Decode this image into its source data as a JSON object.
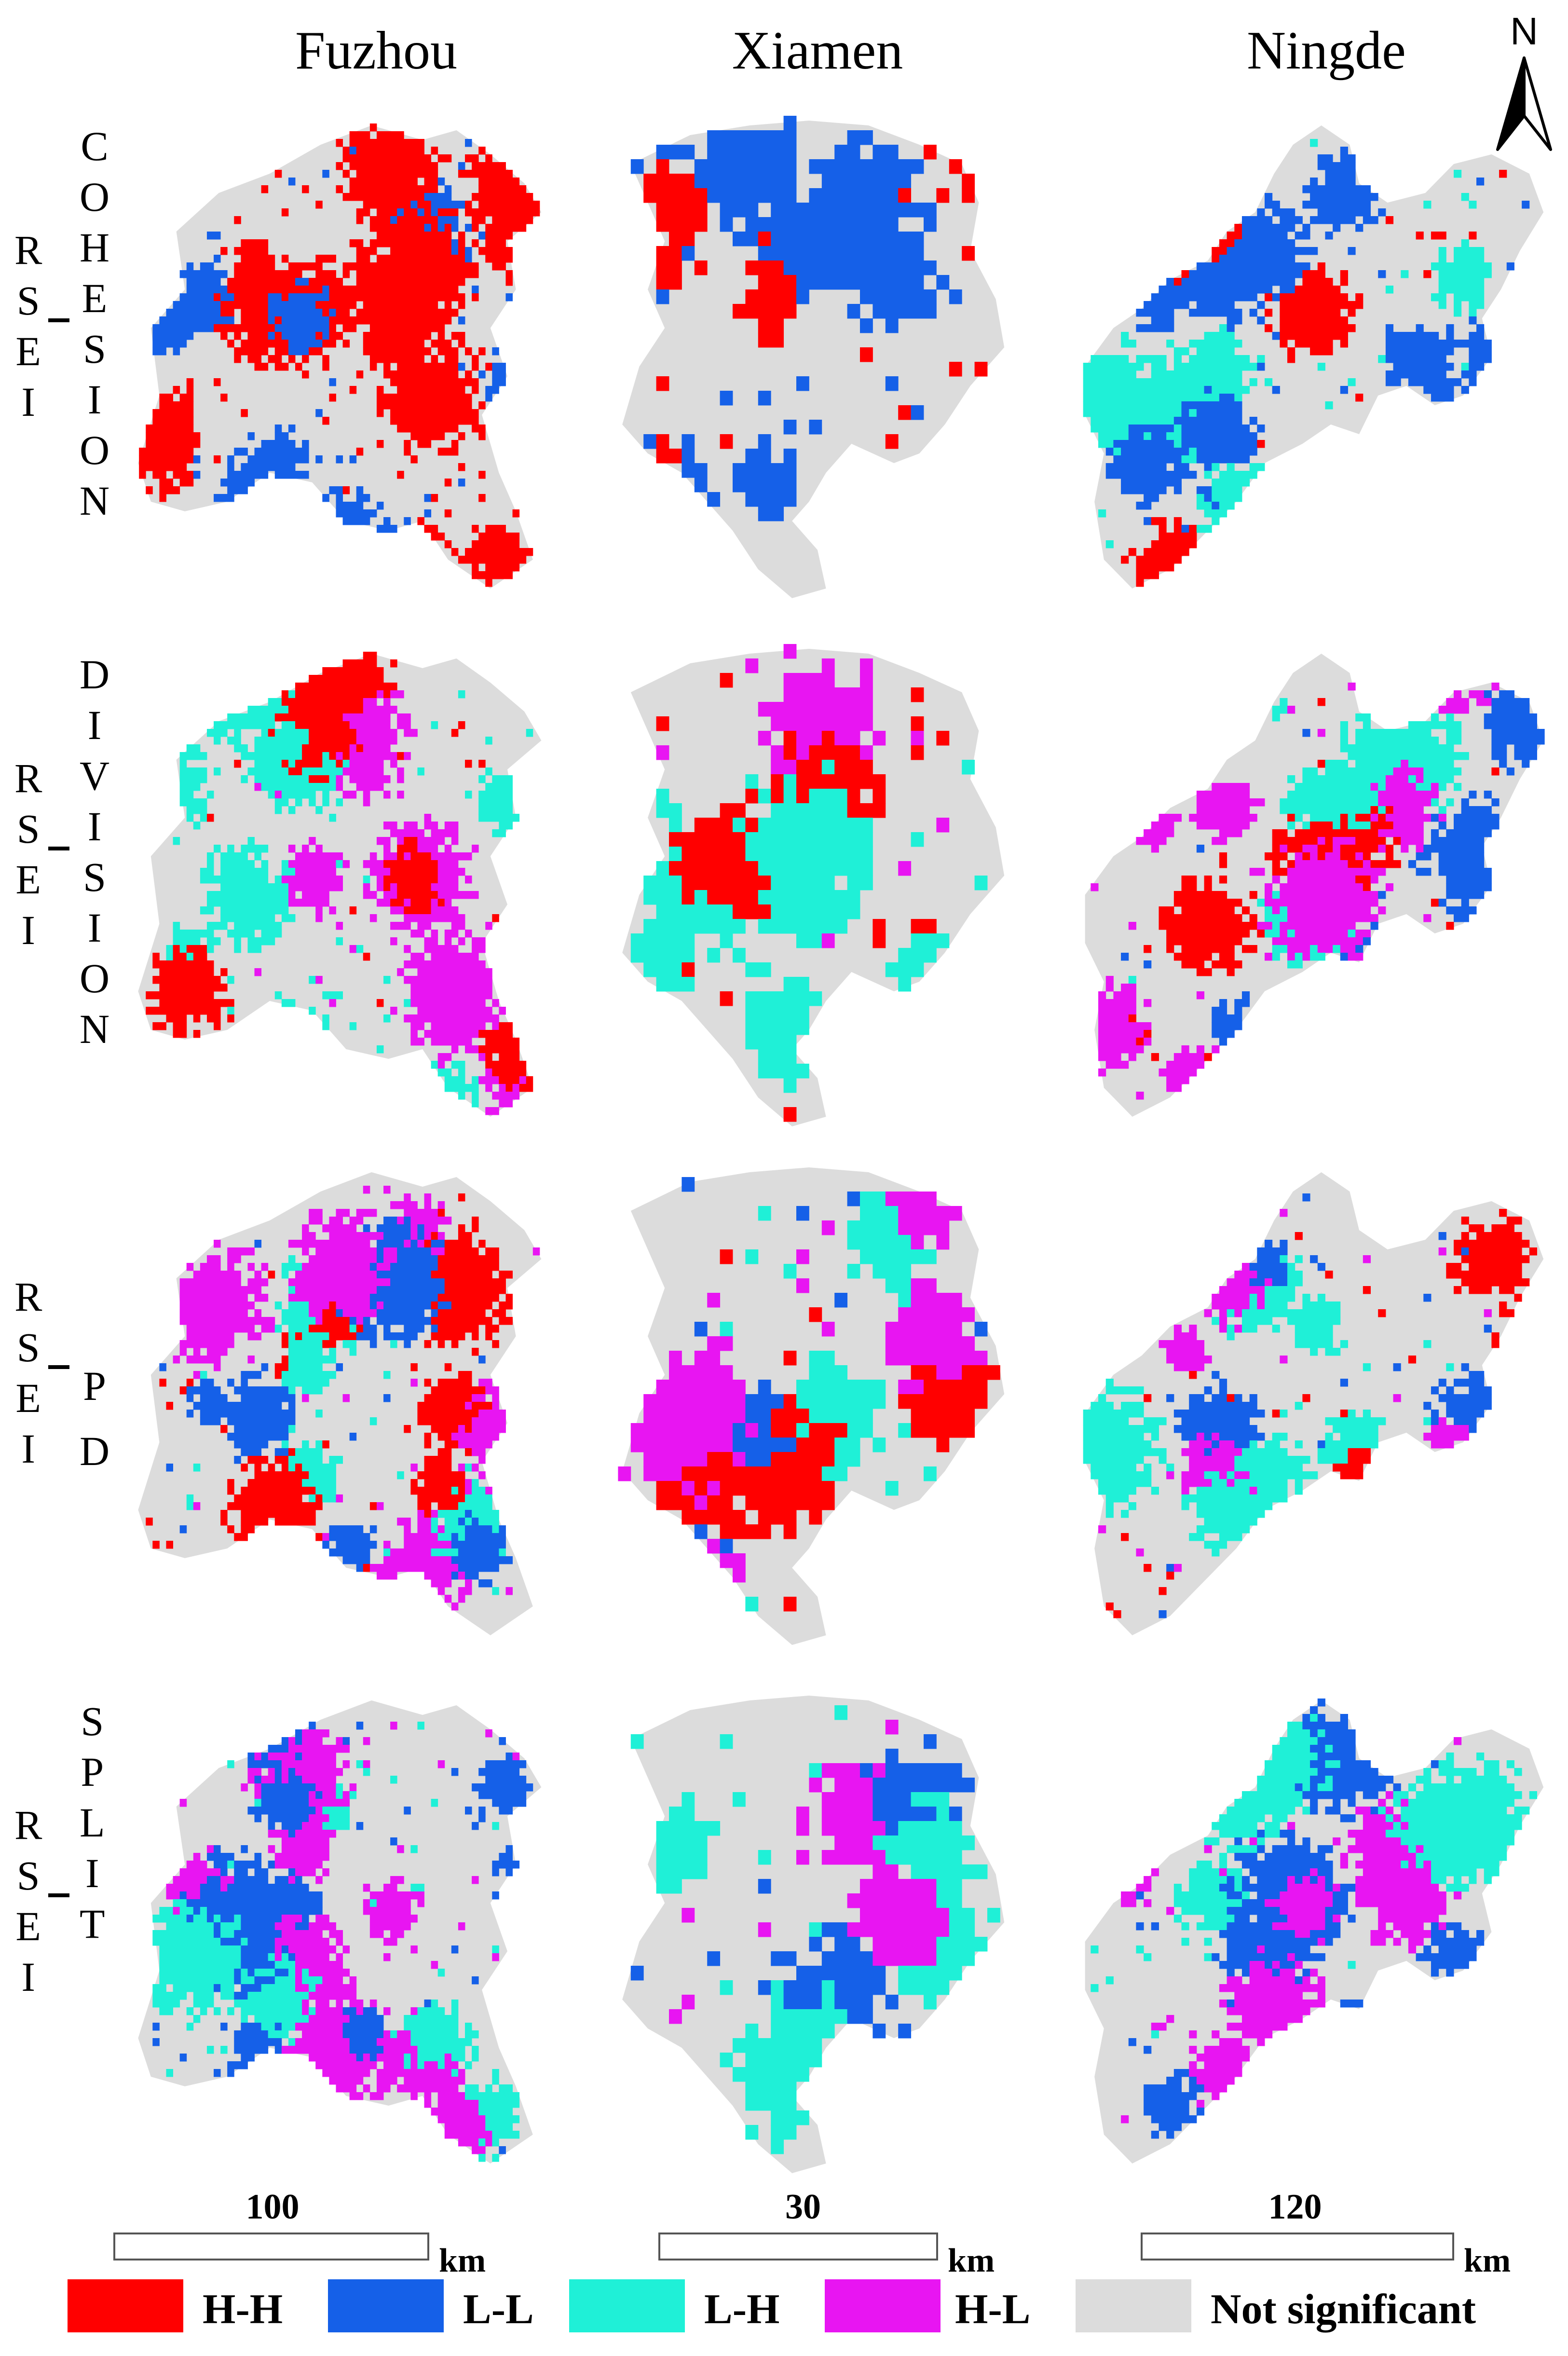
{
  "columns": [
    "Fuzhou",
    "Xiamen",
    "Ningde"
  ],
  "rows": [
    {
      "left": [
        "R",
        "S",
        "E",
        "I"
      ],
      "right": [
        "C",
        "O",
        "H",
        "E",
        "S",
        "I",
        "O",
        "N"
      ]
    },
    {
      "left": [
        "R",
        "S",
        "E",
        "I"
      ],
      "right": [
        "D",
        "I",
        "V",
        "I",
        "S",
        "I",
        "O",
        "N"
      ]
    },
    {
      "left": [
        "R",
        "S",
        "E",
        "I"
      ],
      "right": [
        "P",
        "D"
      ]
    },
    {
      "left": [
        "R",
        "S",
        "E",
        "I"
      ],
      "right": [
        "S",
        "P",
        "L",
        "I",
        "T"
      ]
    }
  ],
  "north_label": "N",
  "scale_bars": [
    {
      "value": "100",
      "unit": "km"
    },
    {
      "value": "30",
      "unit": "km"
    },
    {
      "value": "120",
      "unit": "km"
    }
  ],
  "legend": [
    {
      "key": "HH",
      "label": "H-H",
      "color": "#ff0000"
    },
    {
      "key": "LL",
      "label": "L-L",
      "color": "#1560e8"
    },
    {
      "key": "LH",
      "label": "L-H",
      "color": "#1ff0d7"
    },
    {
      "key": "HL",
      "label": "H-L",
      "color": "#e815f2"
    },
    {
      "key": "NS",
      "label": "Not significant",
      "color": "#dcdcdc"
    }
  ],
  "maps": [
    [
      {
        "dominant": [
          "HH",
          "LL"
        ]
      },
      {
        "dominant": [
          "HH",
          "LL"
        ]
      },
      {
        "dominant": [
          "HH",
          "LL",
          "LH"
        ]
      }
    ],
    [
      {
        "dominant": [
          "HL",
          "LH",
          "HH"
        ]
      },
      {
        "dominant": [
          "HL",
          "LH",
          "HH"
        ]
      },
      {
        "dominant": [
          "HL",
          "LH",
          "HH",
          "LL"
        ]
      }
    ],
    [
      {
        "dominant": [
          "HH",
          "HL",
          "LL",
          "LH"
        ]
      },
      {
        "dominant": [
          "HH",
          "LL",
          "HL",
          "LH"
        ]
      },
      {
        "dominant": [
          "HL",
          "LH",
          "HH",
          "LL"
        ]
      }
    ],
    [
      {
        "dominant": [
          "HL",
          "LH",
          "LL"
        ]
      },
      {
        "dominant": [
          "HL",
          "LH",
          "LL"
        ]
      },
      {
        "dominant": [
          "HL",
          "LL",
          "LH"
        ]
      }
    ]
  ]
}
